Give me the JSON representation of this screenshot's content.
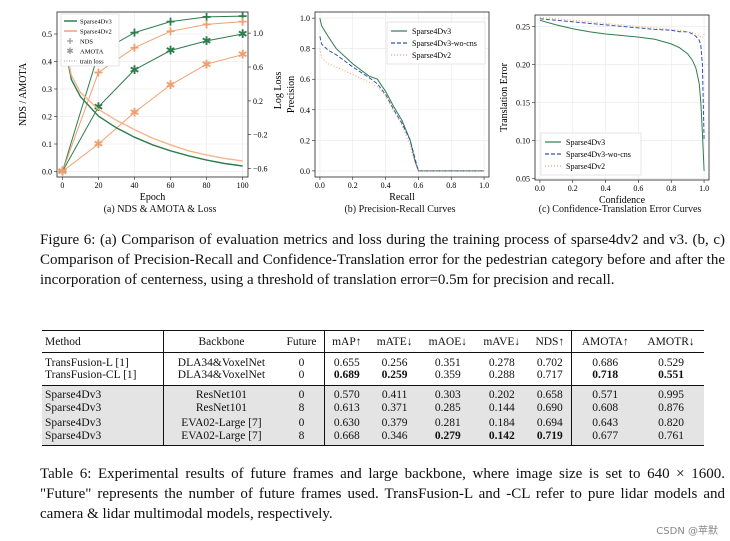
{
  "chart_data": [
    {
      "type": "line",
      "panel_caption": "(a) NDS & AMOTA & Loss",
      "xlabel": "Epoch",
      "ylabel": "NDS / AMOTA",
      "y2label": "Log Loss",
      "x_ticks": [
        "0",
        "20",
        "40",
        "60",
        "80",
        "100"
      ],
      "y_ticks": [
        "0.0",
        "0.1",
        "0.2",
        "0.3",
        "0.4",
        "0.5"
      ],
      "y2_ticks": [
        "1.0",
        "0.6",
        "0.2",
        "−0.2",
        "−0.6"
      ],
      "xlim": [
        -3,
        103
      ],
      "ylim": [
        -0.02,
        0.58
      ],
      "y2lim": [
        -0.7,
        1.25
      ],
      "legend": "top-left",
      "series": [
        {
          "name": "Sparse4Dv3",
          "group": "NDS",
          "color": "#2e7d4f",
          "marker": "+",
          "x": [
            0,
            20,
            40,
            60,
            80,
            100
          ],
          "y": [
            0.0,
            0.43,
            0.505,
            0.545,
            0.562,
            0.565
          ]
        },
        {
          "name": "Sparse4Dv2",
          "group": "NDS",
          "color": "#f0a070",
          "marker": "+",
          "x": [
            0,
            20,
            40,
            60,
            80,
            100
          ],
          "y": [
            0.0,
            0.36,
            0.45,
            0.51,
            0.535,
            0.545
          ]
        },
        {
          "name": "Sparse4Dv3",
          "group": "AMOTA",
          "color": "#2e7d4f",
          "marker": "*",
          "x": [
            0,
            20,
            40,
            60,
            80,
            100
          ],
          "y": [
            0.0,
            0.235,
            0.37,
            0.44,
            0.475,
            0.5
          ]
        },
        {
          "name": "Sparse4Dv2",
          "group": "AMOTA",
          "color": "#f0a070",
          "marker": "*",
          "x": [
            0,
            20,
            40,
            60,
            80,
            100
          ],
          "y": [
            0.0,
            0.1,
            0.215,
            0.315,
            0.39,
            0.425
          ]
        },
        {
          "name": "Sparse4Dv3",
          "group": "train loss",
          "axis": "y2",
          "color": "#2e7d4f",
          "x": [
            0,
            5,
            10,
            20,
            30,
            40,
            50,
            60,
            70,
            80,
            90,
            100
          ],
          "y": [
            1.0,
            0.45,
            0.25,
            0.02,
            -0.12,
            -0.23,
            -0.32,
            -0.39,
            -0.45,
            -0.5,
            -0.54,
            -0.57
          ]
        },
        {
          "name": "Sparse4Dv2",
          "group": "train loss",
          "axis": "y2",
          "color": "#f5b58a",
          "x": [
            0,
            5,
            10,
            20,
            30,
            40,
            50,
            60,
            70,
            80,
            90,
            100
          ],
          "y": [
            1.0,
            0.5,
            0.3,
            0.1,
            -0.03,
            -0.14,
            -0.24,
            -0.32,
            -0.39,
            -0.44,
            -0.48,
            -0.51
          ]
        }
      ],
      "legend_entries": [
        "Sparse4Dv3",
        "Sparse4Dv2",
        "NDS",
        "AMOTA",
        "train loss"
      ]
    },
    {
      "type": "line",
      "panel_caption": "(b) Precision-Recall Curves",
      "xlabel": "Recall",
      "ylabel": "Precision",
      "x_ticks": [
        "0.0",
        "0.2",
        "0.4",
        "0.6",
        "0.8",
        "1.0"
      ],
      "y_ticks": [
        "0.0",
        "0.2",
        "0.4",
        "0.6",
        "0.8",
        "1.0"
      ],
      "xlim": [
        -0.03,
        1.03
      ],
      "ylim": [
        -0.04,
        1.04
      ],
      "legend": "top-right",
      "series": [
        {
          "name": "Sparse4Dv3",
          "color": "#2e7d4f",
          "dash": "none",
          "x": [
            0.0,
            0.01,
            0.05,
            0.1,
            0.2,
            0.3,
            0.35,
            0.4,
            0.45,
            0.5,
            0.55,
            0.58,
            0.6,
            1.0
          ],
          "y": [
            1.0,
            0.95,
            0.88,
            0.8,
            0.7,
            0.62,
            0.6,
            0.52,
            0.42,
            0.33,
            0.2,
            0.06,
            0.0,
            0.0
          ]
        },
        {
          "name": "Sparse4Dv3-wo-cns",
          "color": "#3355aa",
          "dash": "4,2",
          "x": [
            0.0,
            0.01,
            0.05,
            0.1,
            0.2,
            0.3,
            0.35,
            0.4,
            0.45,
            0.5,
            0.55,
            0.58,
            0.6,
            1.0
          ],
          "y": [
            0.88,
            0.83,
            0.79,
            0.76,
            0.68,
            0.61,
            0.57,
            0.5,
            0.4,
            0.31,
            0.2,
            0.08,
            0.0,
            0.0
          ]
        },
        {
          "name": "Sparse4Dv2",
          "color": "#f0a070",
          "dash": "1,2",
          "x": [
            0.0,
            0.01,
            0.05,
            0.1,
            0.2,
            0.3,
            0.35,
            0.4,
            0.45,
            0.5,
            0.55,
            0.58,
            0.6,
            1.0
          ],
          "y": [
            0.8,
            0.74,
            0.7,
            0.68,
            0.63,
            0.58,
            0.55,
            0.49,
            0.39,
            0.3,
            0.16,
            0.05,
            0.0,
            0.0
          ]
        }
      ]
    },
    {
      "type": "line",
      "panel_caption": "(c) Confidence-Translation Error Curves",
      "xlabel": "Confidence",
      "ylabel": "Translation Error",
      "x_ticks": [
        "0.0",
        "0.2",
        "0.4",
        "0.6",
        "0.8",
        "1.0"
      ],
      "y_ticks": [
        "0.05",
        "0.10",
        "0.15",
        "0.20",
        "0.25"
      ],
      "xlim": [
        -0.03,
        1.03
      ],
      "ylim": [
        0.048,
        0.265
      ],
      "legend": "bottom-left",
      "series": [
        {
          "name": "Sparse4Dv3",
          "color": "#2e7d4f",
          "dash": "none",
          "x": [
            0.0,
            0.1,
            0.2,
            0.3,
            0.4,
            0.5,
            0.6,
            0.7,
            0.8,
            0.85,
            0.9,
            0.93,
            0.95,
            0.97,
            0.98,
            0.99,
            1.0
          ],
          "y": [
            0.258,
            0.252,
            0.247,
            0.243,
            0.24,
            0.238,
            0.236,
            0.233,
            0.227,
            0.222,
            0.214,
            0.205,
            0.195,
            0.175,
            0.15,
            0.11,
            0.06
          ]
        },
        {
          "name": "Sparse4Dv3-wo-cns",
          "color": "#3355aa",
          "dash": "4,2",
          "x": [
            0.0,
            0.1,
            0.2,
            0.3,
            0.4,
            0.5,
            0.6,
            0.7,
            0.8,
            0.85,
            0.9,
            0.93,
            0.95,
            0.97,
            0.98,
            0.99,
            1.0
          ],
          "y": [
            0.26,
            0.258,
            0.256,
            0.254,
            0.252,
            0.25,
            0.248,
            0.246,
            0.245,
            0.243,
            0.243,
            0.24,
            0.237,
            0.232,
            0.225,
            0.2,
            0.1
          ]
        },
        {
          "name": "Sparse4Dv2",
          "color": "#f0a070",
          "dash": "1,2",
          "x": [
            0.0,
            0.1,
            0.2,
            0.3,
            0.4,
            0.5,
            0.6,
            0.7,
            0.8,
            0.85,
            0.9,
            0.93,
            0.95,
            0.97,
            0.98,
            0.99,
            1.0
          ],
          "y": [
            0.262,
            0.26,
            0.258,
            0.256,
            0.254,
            0.252,
            0.25,
            0.248,
            0.246,
            0.245,
            0.243,
            0.242,
            0.24,
            0.238,
            0.236,
            0.235,
            0.24
          ]
        }
      ]
    }
  ],
  "figure_caption": "Figure 6: (a) Comparison of evaluation metrics and loss during the training process of sparse4dv2 and v3. (b, c) Comparison of Precision-Recall and Confidence-Translation error for the pedestrian category before and after the incorporation of centerness, using a threshold of translation error=0.5m for precision and recall.",
  "table": {
    "headers": [
      "Method",
      "Backbone",
      "Future",
      "mAP↑",
      "mATE↓",
      "mAOE↓",
      "mAVE↓",
      "NDS↑",
      "AMOTA↑",
      "AMOTR↓"
    ],
    "group1": [
      {
        "cells": [
          "TransFusion-L [1]",
          "DLA34&VoxelNet",
          "0",
          "0.655",
          "0.256",
          "0.351",
          "0.278",
          "0.702",
          "0.686",
          "0.529"
        ],
        "bold": []
      },
      {
        "cells": [
          "TransFusion-CL [1]",
          "DLA34&VoxelNet",
          "0",
          "0.689",
          "0.259",
          "0.359",
          "0.288",
          "0.717",
          "0.718",
          "0.551"
        ],
        "bold": [
          3,
          4,
          8,
          9
        ]
      }
    ],
    "group2": [
      {
        "cells": [
          "Sparse4Dv3",
          "ResNet101",
          "0",
          "0.570",
          "0.411",
          "0.303",
          "0.202",
          "0.658",
          "0.571",
          "0.995"
        ],
        "bold": []
      },
      {
        "cells": [
          "Sparse4Dv3",
          "ResNet101",
          "8",
          "0.613",
          "0.371",
          "0.285",
          "0.144",
          "0.690",
          "0.608",
          "0.876"
        ],
        "bold": []
      },
      {
        "cells": [
          "Sparse4Dv3",
          "EVA02-Large [7]",
          "0",
          "0.630",
          "0.379",
          "0.281",
          "0.184",
          "0.694",
          "0.643",
          "0.820"
        ],
        "bold": []
      },
      {
        "cells": [
          "Sparse4Dv3",
          "EVA02-Large [7]",
          "8",
          "0.668",
          "0.346",
          "0.279",
          "0.142",
          "0.719",
          "0.677",
          "0.761"
        ],
        "bold": [
          5,
          6,
          7
        ]
      }
    ]
  },
  "table_caption": "Table 6: Experimental results of future frames and large backbone, where image size is set to 640 × 1600. \"Future\" represents the number of future frames used. TransFusion-L and -CL refer to pure lidar models and camera & lidar multimodal models, respectively.",
  "watermark": "CSDN @苹默"
}
